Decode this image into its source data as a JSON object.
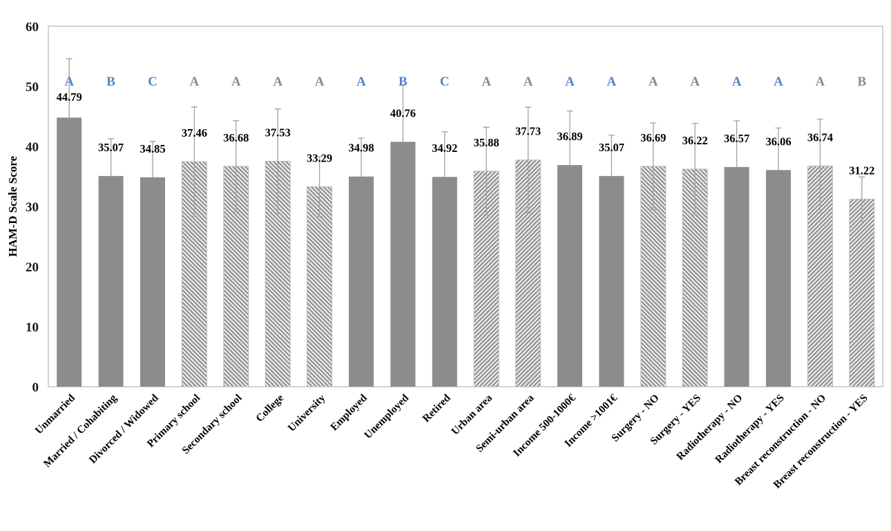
{
  "chart_data": {
    "type": "bar",
    "ylabel": "HAM-D Scale Score",
    "xlabel": "",
    "ylim": [
      0,
      60
    ],
    "yticks": [
      0,
      10,
      20,
      30,
      40,
      50,
      60
    ],
    "grid": false,
    "legend": null,
    "categories": [
      "Unmarried",
      "Married / Cohabiting",
      "Divorced / Widowed",
      "Primary school",
      "Secondary school",
      "College",
      "University",
      "Employed",
      "Unemployed",
      "Retired",
      "Urban area",
      "Semi-urban area",
      "Income 500-1000€",
      "Income >1001€",
      "Surgery - NO",
      "Surgery - YES",
      "Radiotherapy - NO",
      "Radiotherapy - YES",
      "Breast reconstruction - NO",
      "Breast reconstruction - YES"
    ],
    "series": [
      {
        "name": "HAM-D Scale Score",
        "values": [
          44.79,
          35.07,
          34.85,
          37.46,
          36.68,
          37.53,
          33.29,
          34.98,
          40.76,
          34.92,
          35.88,
          37.73,
          36.89,
          35.07,
          36.69,
          36.22,
          36.57,
          36.06,
          36.74,
          31.22
        ],
        "errors": [
          9.8,
          6.2,
          6.0,
          9.1,
          7.6,
          8.7,
          5.0,
          6.4,
          9.5,
          7.5,
          7.3,
          8.8,
          9.0,
          6.8,
          7.2,
          7.6,
          7.7,
          7.0,
          7.8,
          3.7
        ]
      }
    ],
    "bar_patterns": [
      "solid",
      "solid",
      "solid",
      "hatch-down",
      "hatch-down",
      "hatch-down",
      "hatch-down",
      "solid",
      "solid",
      "solid",
      "hatch-up",
      "hatch-up",
      "solid",
      "solid",
      "hatch-down",
      "hatch-down",
      "solid",
      "solid",
      "hatch-up",
      "hatch-up"
    ],
    "letters": [
      {
        "label": "A",
        "tone": "blue"
      },
      {
        "label": "B",
        "tone": "blue"
      },
      {
        "label": "C",
        "tone": "blue"
      },
      {
        "label": "A",
        "tone": "gray"
      },
      {
        "label": "A",
        "tone": "gray"
      },
      {
        "label": "A",
        "tone": "gray"
      },
      {
        "label": "A",
        "tone": "gray"
      },
      {
        "label": "A",
        "tone": "blue"
      },
      {
        "label": "B",
        "tone": "blue"
      },
      {
        "label": "C",
        "tone": "blue"
      },
      {
        "label": "A",
        "tone": "gray"
      },
      {
        "label": "A",
        "tone": "gray"
      },
      {
        "label": "A",
        "tone": "blue"
      },
      {
        "label": "A",
        "tone": "blue"
      },
      {
        "label": "A",
        "tone": "gray"
      },
      {
        "label": "A",
        "tone": "gray"
      },
      {
        "label": "A",
        "tone": "blue"
      },
      {
        "label": "A",
        "tone": "blue"
      },
      {
        "label": "A",
        "tone": "gray"
      },
      {
        "label": "B",
        "tone": "gray"
      }
    ],
    "colors": {
      "bar_fill": "#8c8c8c",
      "hatch_line": "#979797",
      "hatch_border": "#bcbcbc",
      "error_bar": "#a0a0a0",
      "plot_border": "#c3c3c3",
      "letter_blue": "#4e86c8",
      "letter_gray": "#8a8a8a"
    }
  }
}
